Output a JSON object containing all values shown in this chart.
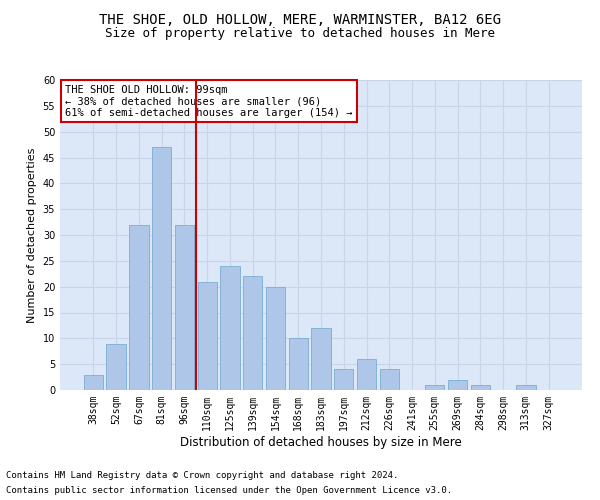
{
  "title1": "THE SHOE, OLD HOLLOW, MERE, WARMINSTER, BA12 6EG",
  "title2": "Size of property relative to detached houses in Mere",
  "xlabel": "Distribution of detached houses by size in Mere",
  "ylabel": "Number of detached properties",
  "categories": [
    "38sqm",
    "52sqm",
    "67sqm",
    "81sqm",
    "96sqm",
    "110sqm",
    "125sqm",
    "139sqm",
    "154sqm",
    "168sqm",
    "183sqm",
    "197sqm",
    "212sqm",
    "226sqm",
    "241sqm",
    "255sqm",
    "269sqm",
    "284sqm",
    "298sqm",
    "313sqm",
    "327sqm"
  ],
  "values": [
    3,
    9,
    32,
    47,
    32,
    21,
    24,
    22,
    20,
    10,
    12,
    4,
    6,
    4,
    0,
    1,
    2,
    1,
    0,
    1,
    0
  ],
  "bar_color": "#aec6e8",
  "bar_edge_color": "#7aadd4",
  "vline_x_index": 4.5,
  "vline_color": "#cc0000",
  "annotation_box_text": "THE SHOE OLD HOLLOW: 99sqm\n← 38% of detached houses are smaller (96)\n61% of semi-detached houses are larger (154) →",
  "annotation_box_color": "#ffffff",
  "annotation_box_edge_color": "#cc0000",
  "ylim": [
    0,
    60
  ],
  "yticks": [
    0,
    5,
    10,
    15,
    20,
    25,
    30,
    35,
    40,
    45,
    50,
    55,
    60
  ],
  "grid_color": "#c8d4e8",
  "bg_color": "#dce8f8",
  "footer1": "Contains HM Land Registry data © Crown copyright and database right 2024.",
  "footer2": "Contains public sector information licensed under the Open Government Licence v3.0.",
  "title1_fontsize": 10,
  "title2_fontsize": 9,
  "xlabel_fontsize": 8.5,
  "ylabel_fontsize": 8,
  "tick_fontsize": 7,
  "annotation_fontsize": 7.5,
  "footer_fontsize": 6.5
}
